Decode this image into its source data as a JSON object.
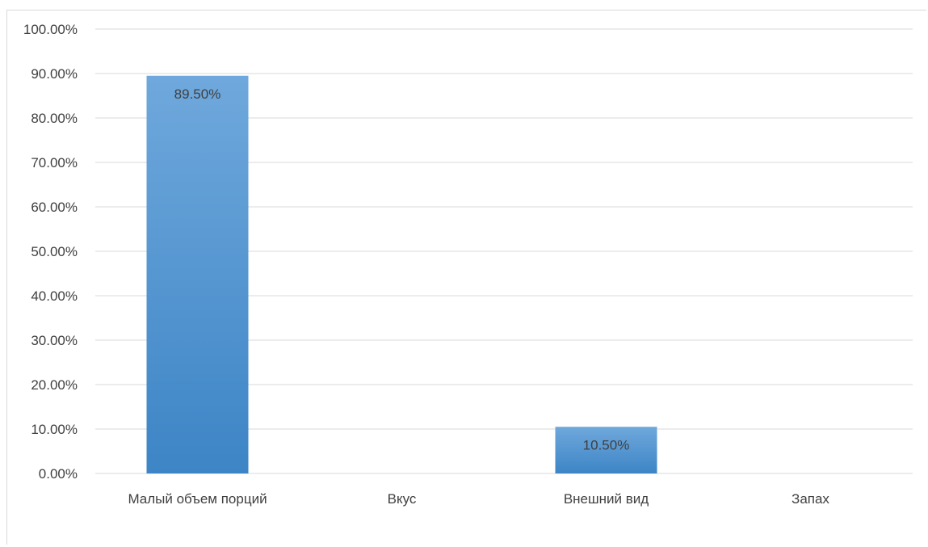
{
  "chart_data": {
    "type": "bar",
    "categories": [
      "Малый объем порций",
      "Вкус",
      "Внешний вид",
      "Запах"
    ],
    "values": [
      89.5,
      0,
      10.5,
      0
    ],
    "value_labels": [
      "89.50%",
      "",
      "10.50%",
      ""
    ],
    "title": "",
    "xlabel": "",
    "ylabel": "",
    "ylim": [
      0,
      100
    ],
    "yticks": [
      "0.00%",
      "10.00%",
      "20.00%",
      "30.00%",
      "40.00%",
      "50.00%",
      "60.00%",
      "70.00%",
      "80.00%",
      "90.00%",
      "100.00%"
    ],
    "grid": true,
    "legend": "none",
    "bar_color_top": "#6fa8dc",
    "bar_color_bottom": "#3d85c6"
  }
}
